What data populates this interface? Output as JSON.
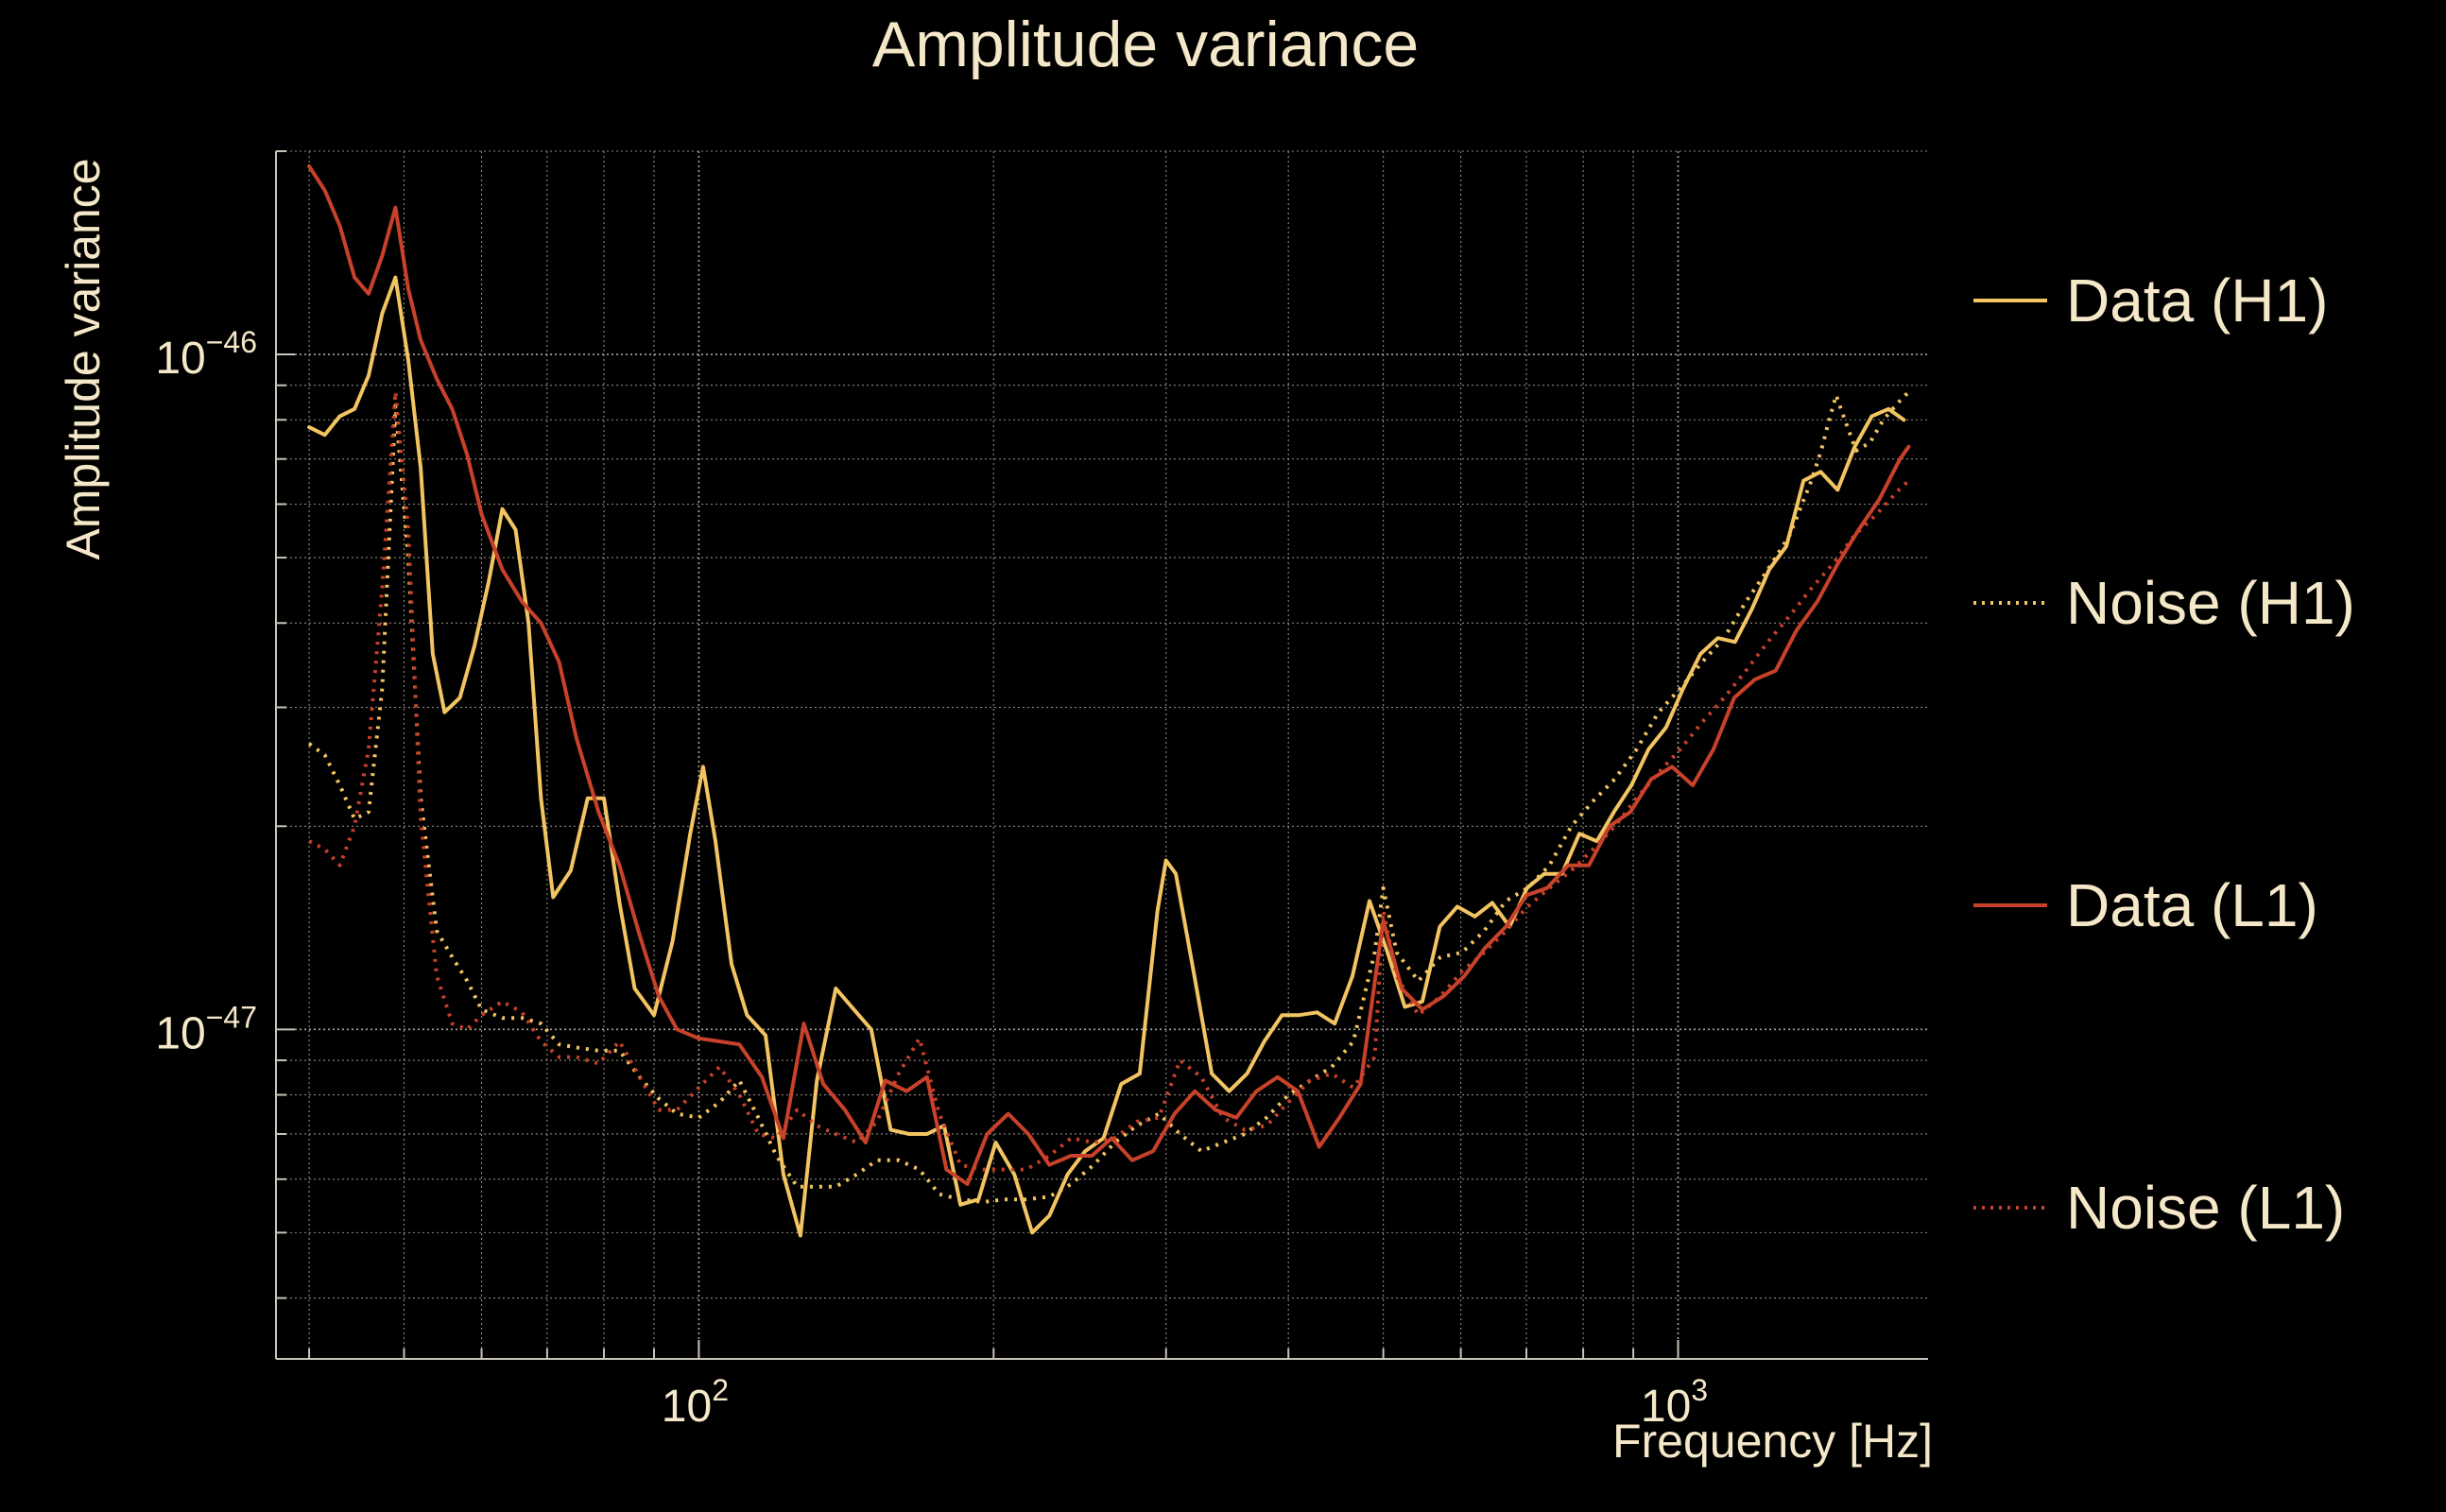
{
  "chart_data": {
    "type": "line",
    "title": "Amplitude variance",
    "xlabel": "Frequency [Hz]",
    "ylabel": "Amplitude variance",
    "x_scale": "log",
    "y_scale": "log",
    "xlim": [
      37,
      1800
    ],
    "ylim": [
      3.25e-48,
      2e-46
    ],
    "x_tick_labels": [
      {
        "value": 100,
        "base": "10",
        "exp": "2"
      },
      {
        "value": 1000,
        "base": "10",
        "exp": "3"
      }
    ],
    "y_tick_labels": [
      {
        "value": 1e-46,
        "base": "10",
        "exp": "−46"
      },
      {
        "value": 1e-47,
        "base": "10",
        "exp": "−47"
      }
    ],
    "grid": true,
    "legend_position": "right",
    "colors": {
      "background": "#000000",
      "text": "#f5e8c8",
      "grid": "#bdb8ac",
      "axis": "#c9c4b8",
      "h1": "#f2c462",
      "l1": "#c8412a"
    },
    "series": [
      {
        "name": "Data (H1)",
        "color": "#f2c462",
        "style": "solid",
        "x": [
          40,
          41.5,
          43,
          44.5,
          46,
          47.5,
          49,
          50.5,
          52,
          53.5,
          55,
          57,
          59,
          61,
          63,
          65,
          67,
          69,
          71,
          74,
          77,
          80,
          83,
          86,
          90,
          94,
          98,
          101,
          104,
          108,
          112,
          117,
          122,
          127,
          132,
          138,
          144,
          150,
          157,
          164,
          171,
          178,
          185,
          193,
          201,
          210,
          219,
          228,
          238,
          248,
          259,
          270,
          282,
          294,
          300,
          307,
          320,
          334,
          348,
          363,
          378,
          394,
          410,
          428,
          446,
          465,
          484,
          505,
          526,
          548,
          571,
          595,
          620,
          646,
          673,
          701,
          730,
          761,
          793,
          826,
          860,
          896,
          933,
          972,
          1012,
          1054,
          1098,
          1143,
          1190,
          1239,
          1290,
          1343,
          1398,
          1455,
          1515,
          1577,
          1640,
          1700
        ],
        "y": [
          7.8e-47,
          7.6e-47,
          8.1e-47,
          8.3e-47,
          9.3e-47,
          1.15e-46,
          1.3e-46,
          9.8e-47,
          6.8e-47,
          3.6e-47,
          2.95e-47,
          3.1e-47,
          3.7e-47,
          4.6e-47,
          5.9e-47,
          5.5e-47,
          4e-47,
          2.2e-47,
          1.57e-47,
          1.72e-47,
          2.2e-47,
          2.2e-47,
          1.54e-47,
          1.15e-47,
          1.05e-47,
          1.35e-47,
          1.95e-47,
          2.45e-47,
          1.9e-47,
          1.25e-47,
          1.05e-47,
          9.8e-48,
          6.1e-48,
          4.95e-48,
          8.4e-48,
          1.15e-47,
          1.07e-47,
          1e-47,
          7.1e-48,
          7e-48,
          7e-48,
          7.2e-48,
          5.5e-48,
          5.6e-48,
          6.8e-48,
          6.1e-48,
          5e-48,
          5.3e-48,
          6.1e-48,
          6.6e-48,
          6.9e-48,
          8.3e-48,
          8.6e-48,
          1.5e-47,
          1.78e-47,
          1.7e-47,
          1.22e-47,
          8.6e-48,
          8.1e-48,
          8.6e-48,
          9.6e-48,
          1.05e-47,
          1.05e-47,
          1.06e-47,
          1.02e-47,
          1.2e-47,
          1.55e-47,
          1.3e-47,
          1.08e-47,
          1.1e-47,
          1.42e-47,
          1.52e-47,
          1.47e-47,
          1.54e-47,
          1.42e-47,
          1.62e-47,
          1.7e-47,
          1.7e-47,
          1.95e-47,
          1.9e-47,
          2.1e-47,
          2.3e-47,
          2.6e-47,
          2.8e-47,
          3.2e-47,
          3.6e-47,
          3.8e-47,
          3.75e-47,
          4.2e-47,
          4.8e-47,
          5.2e-47,
          6.5e-47,
          6.7e-47,
          6.3e-47,
          7.3e-47,
          8.1e-47,
          8.3e-47,
          8e-47
        ]
      },
      {
        "name": "Noise (H1)",
        "color": "#f2c462",
        "style": "dotted",
        "x": [
          40,
          41.5,
          43,
          44.5,
          46,
          47.5,
          49,
          50.5,
          52,
          54,
          56,
          58,
          60,
          63,
          66,
          69,
          72,
          75,
          79,
          83,
          87,
          91,
          95,
          100,
          105,
          110,
          115,
          120,
          126,
          132,
          138,
          145,
          152,
          160,
          168,
          176,
          185,
          195,
          205,
          216,
          228,
          240,
          253,
          266,
          280,
          295,
          310,
          326,
          343,
          361,
          380,
          400,
          421,
          443,
          466,
          490,
          500,
          516,
          543,
          572,
          602,
          634,
          667,
          702,
          739,
          778,
          819,
          862,
          907,
          955,
          1005,
          1058,
          1114,
          1173,
          1235,
          1300,
          1368,
          1400,
          1420,
          1450,
          1480,
          1520,
          1570,
          1620,
          1680,
          1720
        ],
        "y": [
          2.65e-47,
          2.55e-47,
          2.3e-47,
          2.05e-47,
          2.1e-47,
          3.2e-47,
          8.4e-47,
          5e-47,
          2.2e-47,
          1.4e-47,
          1.28e-47,
          1.18e-47,
          1.07e-47,
          1.04e-47,
          1.04e-47,
          1.02e-47,
          9.5e-48,
          9.4e-48,
          9.3e-48,
          9.3e-48,
          8.5e-48,
          7.9e-48,
          7.5e-48,
          7.4e-48,
          7.8e-48,
          8.4e-48,
          7.4e-48,
          6.5e-48,
          5.85e-48,
          5.85e-48,
          5.85e-48,
          6.1e-48,
          6.4e-48,
          6.4e-48,
          6.2e-48,
          5.7e-48,
          5.6e-48,
          5.55e-48,
          5.6e-48,
          5.6e-48,
          5.65e-48,
          5.9e-48,
          6.3e-48,
          6.8e-48,
          7.2e-48,
          7.5e-48,
          7e-48,
          6.6e-48,
          6.8e-48,
          7e-48,
          7.4e-48,
          8e-48,
          8.4e-48,
          8.8e-48,
          9.6e-48,
          1.3e-47,
          1.62e-47,
          1.3e-47,
          1.18e-47,
          1.28e-47,
          1.3e-47,
          1.4e-47,
          1.55e-47,
          1.62e-47,
          1.75e-47,
          2e-47,
          2.18e-47,
          2.35e-47,
          2.6e-47,
          2.95e-47,
          3.2e-47,
          3.5e-47,
          3.8e-47,
          4.3e-47,
          4.8e-47,
          5.4e-47,
          6.5e-47,
          7.2e-47,
          7.8e-47,
          8.7e-47,
          8e-47,
          7.2e-47,
          7.4e-47,
          8e-47,
          8.5e-47,
          8.8e-47
        ]
      },
      {
        "name": "Data (L1)",
        "color": "#c8412a",
        "style": "solid",
        "x": [
          40,
          41.5,
          43,
          44.5,
          46,
          47.5,
          49,
          50.5,
          52,
          54,
          56,
          58,
          60,
          63,
          66,
          69,
          72,
          75,
          79,
          83,
          87,
          91,
          95,
          100,
          105,
          110,
          116,
          122,
          128,
          134,
          141,
          148,
          155,
          163,
          171,
          179,
          188,
          197,
          207,
          217,
          228,
          240,
          252,
          264,
          277,
          291,
          306,
          321,
          337,
          354,
          371,
          390,
          409,
          430,
          451,
          474,
          500,
          522,
          548,
          576,
          605,
          635,
          667,
          700,
          735,
          772,
          811,
          851,
          894,
          939,
          986,
          1035,
          1087,
          1141,
          1198,
          1258,
          1321,
          1387,
          1456,
          1529,
          1605,
          1685,
          1720
        ],
        "y": [
          1.9e-46,
          1.75e-46,
          1.55e-46,
          1.3e-46,
          1.23e-46,
          1.4e-46,
          1.65e-46,
          1.25e-46,
          1.05e-46,
          9.2e-47,
          8.3e-47,
          7.1e-47,
          5.8e-47,
          4.8e-47,
          4.3e-47,
          4e-47,
          3.5e-47,
          2.7e-47,
          2.1e-47,
          1.75e-47,
          1.38e-47,
          1.12e-47,
          1e-47,
          9.7e-48,
          9.6e-48,
          9.5e-48,
          8.5e-48,
          6.9e-48,
          1.02e-47,
          8.3e-48,
          7.6e-48,
          6.8e-48,
          8.4e-48,
          8.1e-48,
          8.5e-48,
          6.2e-48,
          5.9e-48,
          7e-48,
          7.5e-48,
          7e-48,
          6.3e-48,
          6.5e-48,
          6.5e-48,
          6.9e-48,
          6.4e-48,
          6.6e-48,
          7.5e-48,
          8.1e-48,
          7.6e-48,
          7.4e-48,
          8.1e-48,
          8.5e-48,
          8.1e-48,
          6.7e-48,
          7.4e-48,
          8.3e-48,
          1.45e-47,
          1.15e-47,
          1.07e-47,
          1.12e-47,
          1.2e-47,
          1.32e-47,
          1.42e-47,
          1.58e-47,
          1.62e-47,
          1.75e-47,
          1.75e-47,
          2e-47,
          2.1e-47,
          2.35e-47,
          2.45e-47,
          2.3e-47,
          2.6e-47,
          3.1e-47,
          3.3e-47,
          3.4e-47,
          3.9e-47,
          4.3e-47,
          4.9e-47,
          5.5e-47,
          6.1e-47,
          7e-47,
          7.3e-47
        ]
      },
      {
        "name": "Noise (L1)",
        "color": "#c8412a",
        "style": "dotted",
        "x": [
          40,
          41.5,
          43,
          44.5,
          46,
          47.5,
          49,
          50.5,
          52,
          54,
          56,
          58,
          60,
          63,
          66,
          69,
          72,
          75,
          79,
          83,
          87,
          91,
          95,
          100,
          105,
          110,
          115,
          120,
          126,
          132,
          138,
          145,
          152,
          160,
          168,
          176,
          185,
          195,
          205,
          216,
          228,
          240,
          253,
          266,
          280,
          295,
          310,
          326,
          343,
          361,
          380,
          400,
          421,
          443,
          466,
          490,
          500,
          516,
          543,
          572,
          602,
          634,
          667,
          702,
          739,
          778,
          819,
          862,
          907,
          955,
          1005,
          1058,
          1114,
          1173,
          1235,
          1300,
          1368,
          1440,
          1515,
          1595,
          1680,
          1720
        ],
        "y": [
          1.9e-47,
          1.85e-47,
          1.75e-47,
          2e-47,
          2.6e-47,
          4.5e-47,
          8.8e-47,
          5.5e-47,
          2.05e-47,
          1.2e-47,
          1.02e-47,
          1e-47,
          1.05e-47,
          1.1e-47,
          1.06e-47,
          9.6e-48,
          9.1e-48,
          9.1e-48,
          8.9e-48,
          9.6e-48,
          8.5e-48,
          7.6e-48,
          7.6e-48,
          8.2e-48,
          8.8e-48,
          8e-48,
          7e-48,
          6.9e-48,
          7.6e-48,
          7.2e-48,
          7e-48,
          6.8e-48,
          7.3e-48,
          8.6e-48,
          9.7e-48,
          7.5e-48,
          6.3e-48,
          6.2e-48,
          6.2e-48,
          6.2e-48,
          6.5e-48,
          6.9e-48,
          6.8e-48,
          6.9e-48,
          7.3e-48,
          7.4e-48,
          9e-48,
          8.5e-48,
          7.4e-48,
          7.1e-48,
          7.2e-48,
          7.8e-48,
          8.4e-48,
          8.6e-48,
          8.2e-48,
          9.1e-48,
          1.5e-47,
          1.2e-47,
          1.05e-47,
          1.12e-47,
          1.22e-47,
          1.3e-47,
          1.4e-47,
          1.52e-47,
          1.62e-47,
          1.72e-47,
          1.85e-47,
          2e-47,
          2.2e-47,
          2.4e-47,
          2.6e-47,
          2.85e-47,
          3.1e-47,
          3.4e-47,
          3.75e-47,
          4.1e-47,
          4.5e-47,
          4.9e-47,
          5.4e-47,
          5.8e-47,
          6.3e-47,
          6.5e-47
        ]
      }
    ]
  }
}
